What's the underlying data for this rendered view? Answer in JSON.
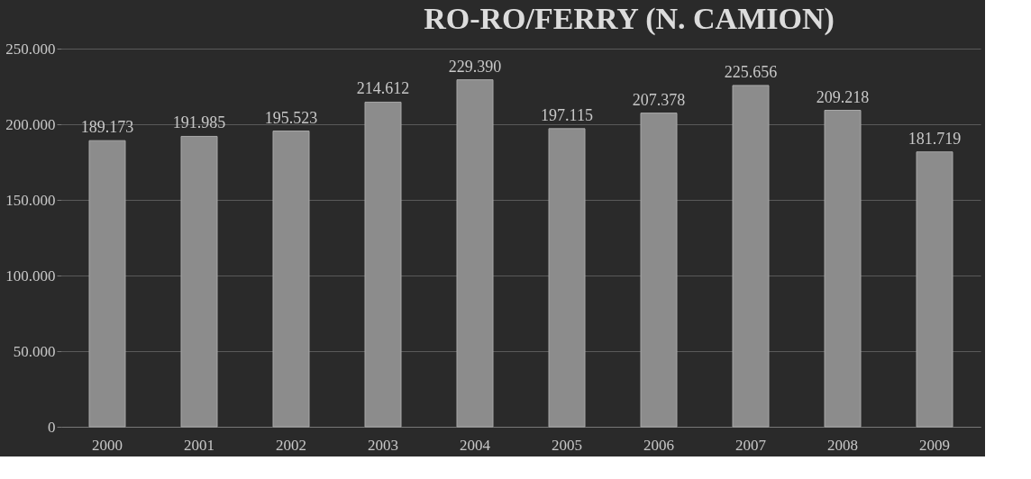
{
  "chart_data": {
    "type": "bar",
    "title": "RO-RO/FERRY (N. CAMION)",
    "categories": [
      "2000",
      "2001",
      "2002",
      "2003",
      "2004",
      "2005",
      "2006",
      "2007",
      "2008",
      "2009"
    ],
    "values": [
      189173,
      191985,
      195523,
      214612,
      229390,
      197115,
      207378,
      225656,
      209218,
      181719
    ],
    "value_labels": [
      "189.173",
      "191.985",
      "195.523",
      "214.612",
      "229.390",
      "197.115",
      "207.378",
      "225.656",
      "209.218",
      "181.719"
    ],
    "color": "#8c8c8c",
    "ylim": [
      0,
      250000
    ],
    "yticks": [
      0,
      {
        "value": 50000,
        "label": "50.000"
      },
      {
        "value": 100000,
        "label": "100.000"
      },
      {
        "value": 150000,
        "label": "150.000"
      },
      {
        "value": 200000,
        "label": "200.000"
      },
      {
        "value": 250000,
        "label": "250.000"
      }
    ],
    "grid": "y"
  }
}
